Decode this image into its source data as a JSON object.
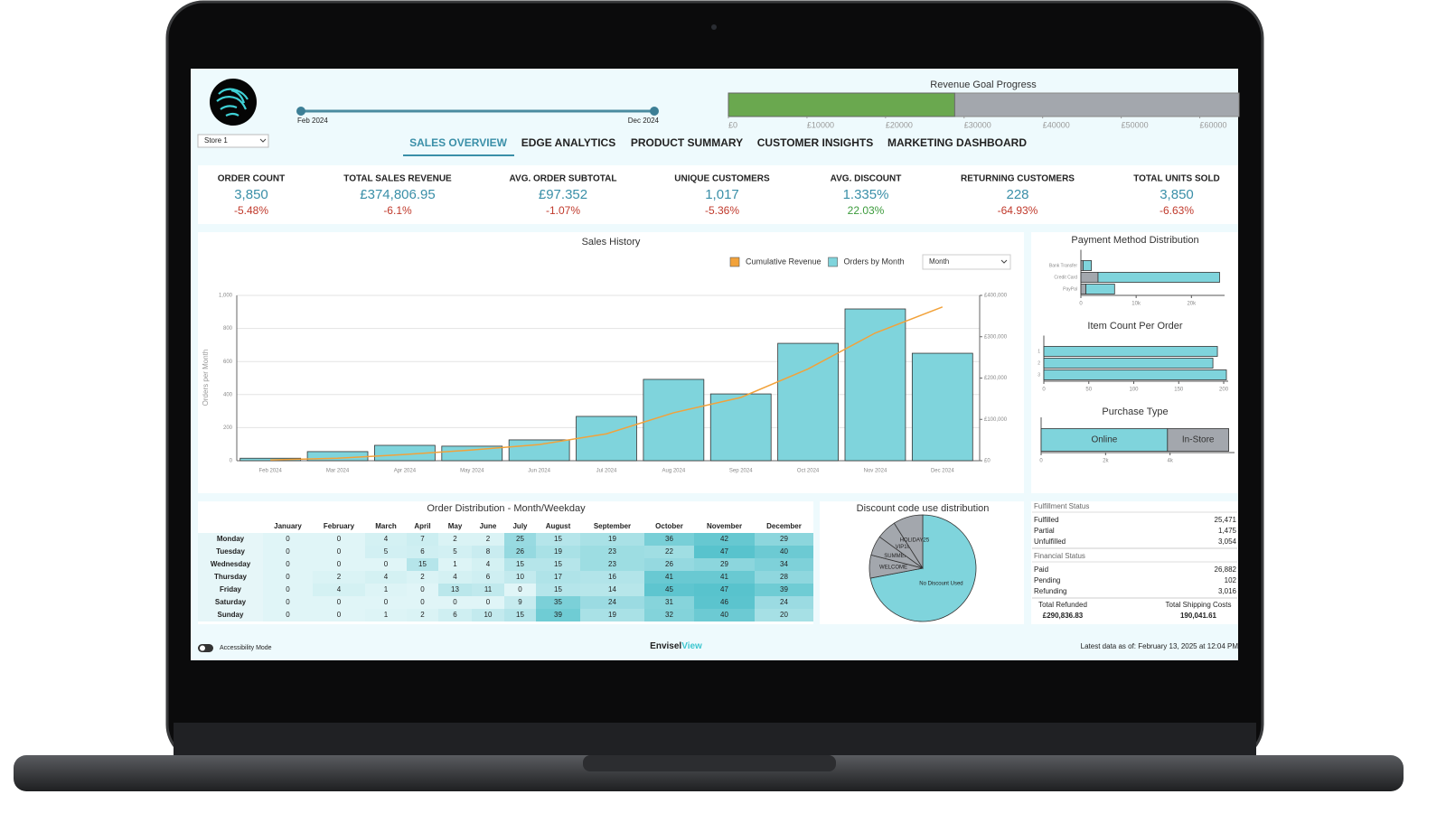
{
  "header": {
    "store": "Store 1",
    "date_range": [
      "Feb 2024",
      "Dec 2024"
    ],
    "tabs": [
      "SALES OVERVIEW",
      "EDGE ANALYTICS",
      "PRODUCT SUMMARY",
      "CUSTOMER INSIGHTS",
      "MARKETING DASHBOARD"
    ]
  },
  "kpis": [
    {
      "label": "ORDER COUNT",
      "value": "3,850",
      "change": "-5.48%"
    },
    {
      "label": "TOTAL SALES REVENUE",
      "value": "£374,806.95",
      "change": "-6.1%"
    },
    {
      "label": "AVG. ORDER SUBTOTAL",
      "value": "£97.352",
      "change": "-1.07%"
    },
    {
      "label": "UNIQUE CUSTOMERS",
      "value": "1,017",
      "change": "-5.36%"
    },
    {
      "label": "AVG. DISCOUNT",
      "value": "1.335%",
      "change": "22.03%"
    },
    {
      "label": "RETURNING CUSTOMERS",
      "value": "228",
      "change": "-64.93%"
    },
    {
      "label": "TOTAL UNITS SOLD",
      "value": "3,850",
      "change": "-6.63%"
    }
  ],
  "chart_data": [
    {
      "type": "progress",
      "title": "Revenue Goal Progress",
      "value": 28800,
      "color": "#6aa84f",
      "background": "#a3a7ad",
      "xlim": [
        0,
        65000
      ],
      "xticks": [
        {
          "value": 0,
          "label": "£0"
        },
        {
          "value": 10000,
          "label": "£10000"
        },
        {
          "value": 20000,
          "label": "£20000"
        },
        {
          "value": 30000,
          "label": "£30000"
        },
        {
          "value": 40000,
          "label": "£40000"
        },
        {
          "value": 50000,
          "label": "£50000"
        },
        {
          "value": 60000,
          "label": "£60000"
        }
      ]
    },
    {
      "type": "bar",
      "title": "Sales History",
      "period": "Month",
      "ylabel": "Orders per Month",
      "categories": [
        "Feb 2024",
        "Mar 2024",
        "Apr 2024",
        "May 2024",
        "Jun 2024",
        "Jul 2024",
        "Aug 2024",
        "Sep 2024",
        "Oct 2024",
        "Nov 2024",
        "Dec 2024"
      ],
      "ylim": [
        0,
        1000
      ],
      "yticks": [
        0,
        200,
        400,
        600,
        800,
        {
          "value": 1000,
          "label": "1,000"
        }
      ],
      "y2lim": [
        0,
        400000
      ],
      "y2ticks": [
        {
          "value": 0,
          "label": "£0"
        },
        {
          "value": 100000,
          "label": "£100,000"
        },
        {
          "value": 200000,
          "label": "£200,000"
        },
        {
          "value": 300000,
          "label": "£300,000"
        },
        {
          "value": 400000,
          "label": "£400,000"
        }
      ],
      "grid": true,
      "series": [
        {
          "name": "Cumulative Revenue",
          "type": "line",
          "axis": "y2",
          "color": "#f2a23a",
          "values": [
            2000,
            6000,
            15000,
            26000,
            39000,
            65000,
            116000,
            153000,
            222000,
            309000,
            372000
          ]
        },
        {
          "name": "Orders by Month",
          "type": "bar",
          "color": "#7fd4dc",
          "values": [
            15,
            55,
            93,
            88,
            126,
            268,
            492,
            404,
            710,
            918,
            650
          ]
        }
      ]
    },
    {
      "type": "hbar",
      "title": "Payment Method Distribution",
      "categories": [
        "Bank Transfer",
        "Credit Card",
        "PayPal"
      ],
      "series": [
        {
          "color": "#a3a7ad",
          "values": [
            400,
            3100,
            900
          ]
        },
        {
          "color": "#7fd4dc",
          "values": [
            1500,
            22000,
            5200
          ]
        }
      ],
      "xlim": [
        0,
        26000
      ],
      "xticks": [
        0,
        {
          "value": 10000,
          "label": "10k"
        },
        {
          "value": 20000,
          "label": "20k"
        }
      ]
    },
    {
      "type": "hbar",
      "title": "Item Count Per Order",
      "categories": [
        "1",
        "2",
        "3"
      ],
      "series": [
        {
          "color": "#7fd4dc",
          "values": [
            193,
            188,
            203
          ]
        }
      ],
      "xlim": [
        0,
        205
      ],
      "xticks": [
        0,
        50,
        100,
        150,
        200
      ]
    },
    {
      "type": "hbar",
      "title": "Purchase Type",
      "categories": [
        null
      ],
      "series": [
        {
          "name": "Online",
          "color": "#7fd4dc",
          "values": [
            3920
          ]
        },
        {
          "name": "In-Store",
          "color": "#a3a7ad",
          "values": [
            1900
          ]
        }
      ],
      "xlim": [
        0,
        6000
      ],
      "xticks": [
        0,
        {
          "value": 2000,
          "label": "2k"
        },
        {
          "value": 4000,
          "label": "4k"
        }
      ]
    },
    {
      "type": "pie",
      "title": "Discount code use distribution",
      "categories": [
        "No Discount Used",
        "WELCOME",
        "SUMMER",
        "VIP10",
        "HOLIDAY25"
      ],
      "values": [
        72,
        7,
        6,
        6,
        9
      ],
      "colors": [
        "#7fd4dc",
        "#a3a7ad",
        "#a3a7ad",
        "#a3a7ad",
        "#a3a7ad"
      ]
    }
  ],
  "order_distribution": {
    "title": "Order Distribution - Month/Weekday",
    "columns": [
      "January",
      "February",
      "March",
      "April",
      "May",
      "June",
      "July",
      "August",
      "September",
      "October",
      "November",
      "December"
    ],
    "rows": [
      {
        "day": "Monday",
        "values": [
          0,
          0,
          4,
          7,
          2,
          2,
          25,
          15,
          19,
          36,
          42,
          29
        ]
      },
      {
        "day": "Tuesday",
        "values": [
          0,
          0,
          5,
          6,
          5,
          8,
          26,
          19,
          23,
          22,
          47,
          40
        ]
      },
      {
        "day": "Wednesday",
        "values": [
          0,
          0,
          0,
          15,
          1,
          4,
          15,
          15,
          23,
          26,
          29,
          34
        ]
      },
      {
        "day": "Thursday",
        "values": [
          0,
          2,
          4,
          2,
          4,
          6,
          10,
          17,
          16,
          41,
          41,
          28
        ]
      },
      {
        "day": "Friday",
        "values": [
          0,
          4,
          1,
          0,
          13,
          11,
          0,
          15,
          14,
          45,
          47,
          39
        ]
      },
      {
        "day": "Saturday",
        "values": [
          0,
          0,
          0,
          0,
          0,
          0,
          9,
          35,
          24,
          31,
          46,
          24
        ]
      },
      {
        "day": "Sunday",
        "values": [
          0,
          0,
          1,
          2,
          6,
          10,
          15,
          39,
          19,
          32,
          40,
          20
        ]
      }
    ]
  },
  "status": {
    "sections": [
      {
        "title": "Fulfillment Status",
        "items": [
          {
            "label": "Fulfilled",
            "value": "25,471"
          },
          {
            "label": "Partial",
            "value": "1,475"
          },
          {
            "label": "Unfulfilled",
            "value": "3,054"
          }
        ]
      },
      {
        "title": "Financial Status",
        "items": [
          {
            "label": "Paid",
            "value": "26,882"
          },
          {
            "label": "Pending",
            "value": "102"
          },
          {
            "label": "Refunding",
            "value": "3,016"
          }
        ]
      }
    ],
    "totals": [
      {
        "label": "Total Refunded",
        "value": "£290,836.83"
      },
      {
        "label": "Total Shipping Costs",
        "value": "190,041.61"
      }
    ]
  },
  "footer": {
    "accessibility": "Accessibility Mode",
    "brand": [
      "Envisel",
      "View"
    ],
    "updated": "Latest data as of: February 13, 2025 at 12:04 PM"
  }
}
